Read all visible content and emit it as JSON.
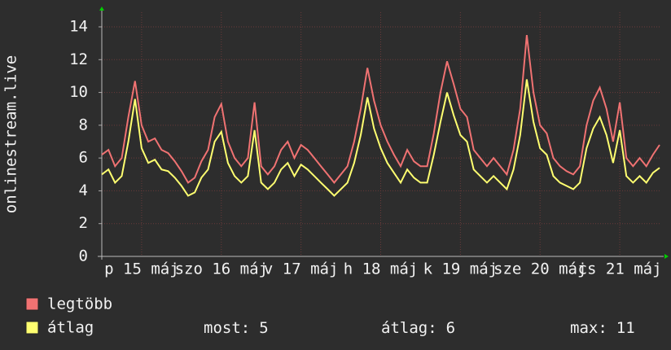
{
  "chart_data": {
    "type": "line",
    "y_label": "onlinestream.live",
    "xlim": [
      0,
      168
    ],
    "xticks": [
      {
        "value": 12,
        "label": "p 15 máj"
      },
      {
        "value": 36,
        "label": "szo 16 máj"
      },
      {
        "value": 60,
        "label": "v 17 máj"
      },
      {
        "value": 84,
        "label": "h 18 máj"
      },
      {
        "value": 108,
        "label": "k 19 máj"
      },
      {
        "value": 132,
        "label": "sze 20 máj"
      },
      {
        "value": 156,
        "label": "cs 21 máj"
      }
    ],
    "ylim": [
      0,
      14
    ],
    "yticks": [
      0,
      2,
      4,
      6,
      8,
      10,
      12,
      14
    ],
    "grid": true,
    "x": [
      0,
      2,
      4,
      6,
      8,
      10,
      12,
      14,
      16,
      18,
      20,
      22,
      24,
      26,
      28,
      30,
      32,
      34,
      36,
      38,
      40,
      42,
      44,
      46,
      48,
      50,
      52,
      54,
      56,
      58,
      60,
      62,
      64,
      66,
      68,
      70,
      72,
      74,
      76,
      78,
      80,
      82,
      84,
      86,
      88,
      90,
      92,
      94,
      96,
      98,
      100,
      102,
      104,
      106,
      108,
      110,
      112,
      114,
      116,
      118,
      120,
      122,
      124,
      126,
      128,
      130,
      132,
      134,
      136,
      138,
      140,
      142,
      144,
      146,
      148,
      150,
      152,
      154,
      156,
      158,
      160,
      162,
      164,
      166,
      168
    ],
    "series": [
      {
        "name": "legtöbb",
        "color": "#f07272",
        "values": [
          6.2,
          6.5,
          5.5,
          6.0,
          8.5,
          10.7,
          8.0,
          7.0,
          7.2,
          6.5,
          6.3,
          5.8,
          5.2,
          4.5,
          4.8,
          5.8,
          6.5,
          8.5,
          9.3,
          7.0,
          6.0,
          5.5,
          6.0,
          9.4,
          5.5,
          5.0,
          5.5,
          6.5,
          7.0,
          6.0,
          6.8,
          6.5,
          6.0,
          5.5,
          5.0,
          4.5,
          5.0,
          5.5,
          7.0,
          9.0,
          11.5,
          9.5,
          8.0,
          7.0,
          6.2,
          5.5,
          6.5,
          5.8,
          5.5,
          5.5,
          7.5,
          10.0,
          11.9,
          10.5,
          9.0,
          8.5,
          6.5,
          6.0,
          5.5,
          6.0,
          5.5,
          5.0,
          6.5,
          9.0,
          13.5,
          10.0,
          8.0,
          7.5,
          6.0,
          5.5,
          5.2,
          5.0,
          5.5,
          8.0,
          9.5,
          10.3,
          9.0,
          7.0,
          9.4,
          6.0,
          5.5,
          6.0,
          5.5,
          6.2,
          6.8
        ]
      },
      {
        "name": "átlag",
        "color": "#ffff70",
        "values": [
          5.0,
          5.3,
          4.5,
          4.9,
          7.0,
          9.6,
          6.6,
          5.7,
          5.9,
          5.3,
          5.2,
          4.8,
          4.3,
          3.7,
          3.9,
          4.8,
          5.3,
          7.0,
          7.6,
          5.7,
          4.9,
          4.5,
          4.9,
          7.7,
          4.5,
          4.1,
          4.5,
          5.3,
          5.7,
          4.9,
          5.6,
          5.3,
          4.9,
          4.5,
          4.1,
          3.7,
          4.1,
          4.5,
          5.7,
          7.4,
          9.7,
          7.8,
          6.6,
          5.7,
          5.1,
          4.5,
          5.3,
          4.8,
          4.5,
          4.5,
          6.2,
          8.2,
          10.0,
          8.6,
          7.4,
          7.0,
          5.3,
          4.9,
          4.5,
          4.9,
          4.5,
          4.1,
          5.3,
          7.4,
          10.8,
          8.2,
          6.6,
          6.2,
          4.9,
          4.5,
          4.3,
          4.1,
          4.5,
          6.6,
          7.8,
          8.5,
          7.4,
          5.7,
          7.7,
          4.9,
          4.5,
          4.9,
          4.5,
          5.1,
          5.4
        ]
      }
    ],
    "stats": [
      {
        "label": "most:",
        "value": 5
      },
      {
        "label": "átlag:",
        "value": 6
      },
      {
        "label": "max:",
        "value": 11
      }
    ]
  }
}
